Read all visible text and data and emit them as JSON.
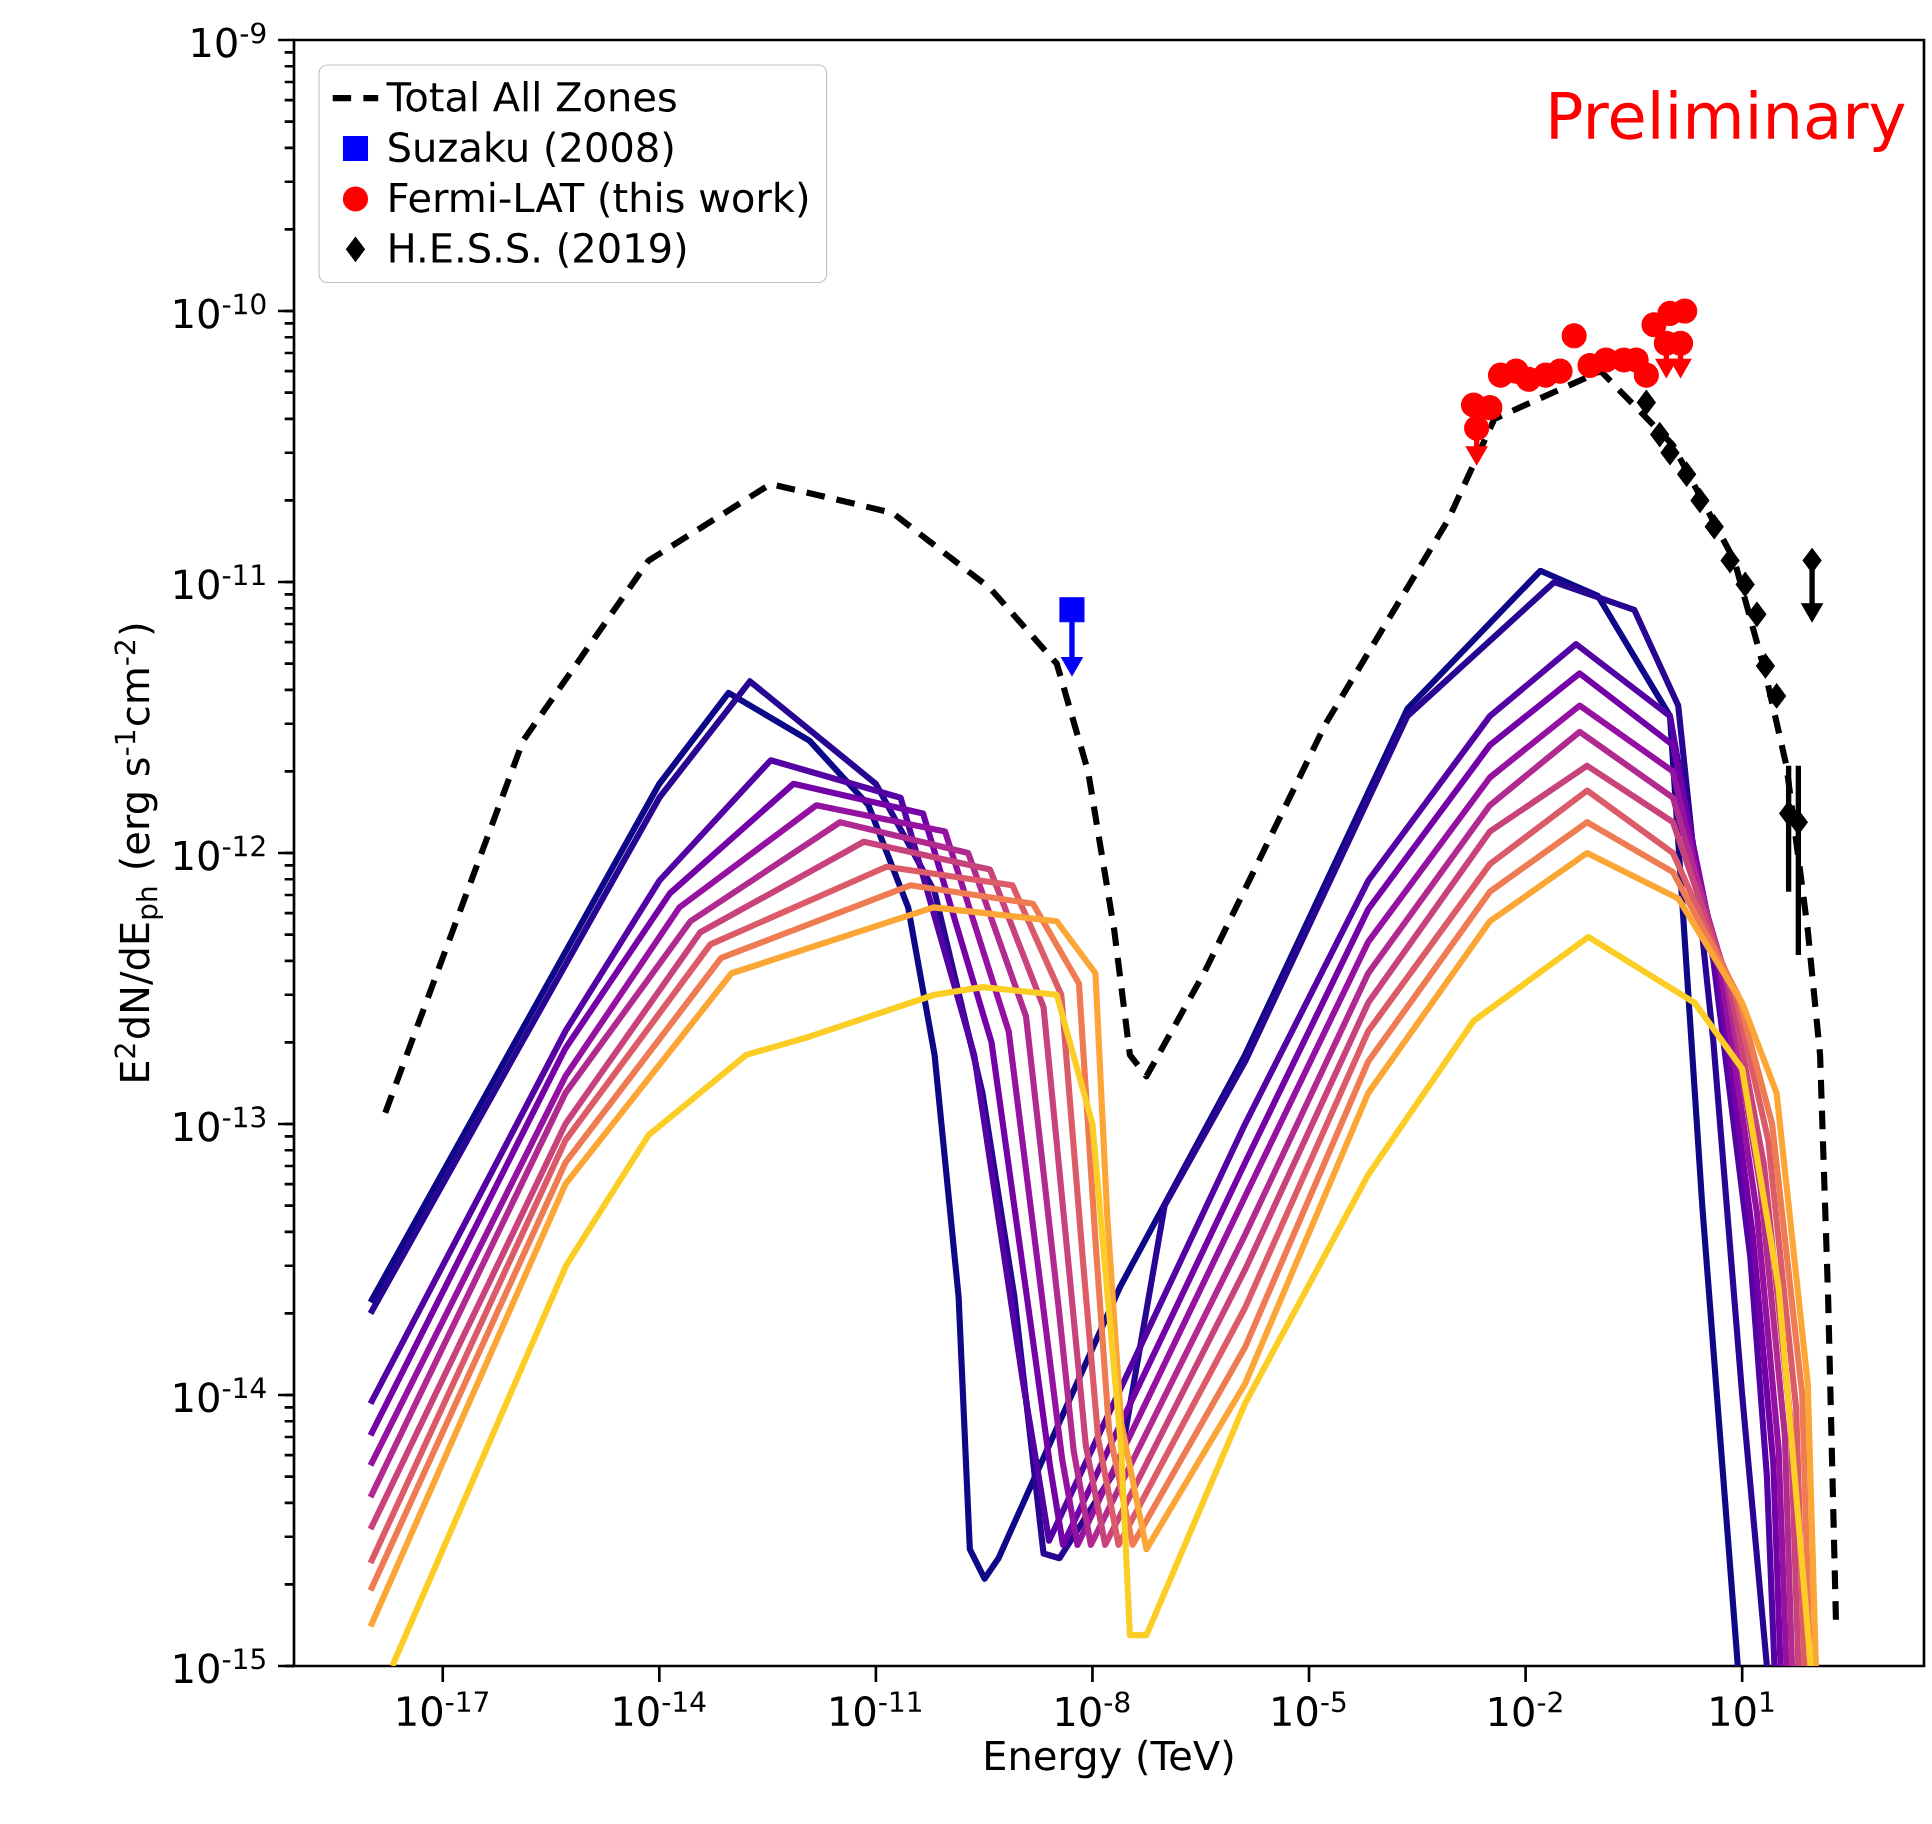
{
  "chart_data": {
    "type": "line",
    "log": "xy",
    "xlabel": "Energy (TeV)",
    "ylabel": "E$^{2}$dN/dE$_{ph}$ (erg s$^{-1}$cm$^{-2}$)",
    "xlim": [
      8.7e-20,
      3300.0
    ],
    "ylim": [
      1e-15,
      1e-09
    ],
    "xticks": [
      {
        "value": 1e-17,
        "label": "10$^{-17}$"
      },
      {
        "value": 1e-14,
        "label": "10$^{-14}$"
      },
      {
        "value": 1e-11,
        "label": "10$^{-11}$"
      },
      {
        "value": 1e-08,
        "label": "10$^{-8}$"
      },
      {
        "value": 1e-05,
        "label": "10$^{-5}$"
      },
      {
        "value": 0.01,
        "label": "10$^{-2}$"
      },
      {
        "value": 10,
        "label": "10$^{1}$"
      }
    ],
    "yticks": [
      {
        "value": 1e-15,
        "label": "10$^{-15}$"
      },
      {
        "value": 1e-14,
        "label": "10$^{-14}$"
      },
      {
        "value": 1e-13,
        "label": "10$^{-13}$"
      },
      {
        "value": 1e-12,
        "label": "10$^{-12}$"
      },
      {
        "value": 1e-11,
        "label": "10$^{-11}$"
      },
      {
        "value": 1e-10,
        "label": "10$^{-10}$"
      },
      {
        "value": 1e-09,
        "label": "10$^{-9}$"
      }
    ],
    "legend": "top left",
    "annotations": [
      "Preliminary"
    ],
    "series": [
      {
        "color": "#0d0887",
        "x": [
          1e-18,
          1e-16,
          1e-14,
          9.1e-14,
          1.2e-12,
          7.9e-12,
          2.8e-11,
          6.5e-11,
          1.4e-10,
          2e-10,
          3.2e-10,
          5e-10,
          2.4e-08,
          1.3e-06,
          0.00023,
          0.016,
          0.1,
          1,
          2.8,
          8.7
        ],
        "values": [
          2.2e-14,
          2e-13,
          1.8e-12,
          3.9e-12,
          2.6e-12,
          1.5e-12,
          6.3e-13,
          1.8e-13,
          2.3e-14,
          2.7e-15,
          2.1e-15,
          2.5e-15,
          2.5e-14,
          1.8e-13,
          3.4e-12,
          1.1e-11,
          8.9e-12,
          3.2e-12,
          5e-14,
          1e-15
        ]
      },
      {
        "color": "#280592",
        "x": [
          1e-18,
          1e-16,
          1e-14,
          1.8e-13,
          1e-11,
          6.5e-11,
          3e-10,
          8.3e-10,
          2.1e-09,
          3.5e-09,
          2.4e-08,
          1e-07,
          1.3e-06,
          0.00023,
          0.025,
          0.32,
          1.3,
          4.0,
          10,
          22
        ],
        "values": [
          2e-14,
          1.8e-13,
          1.6e-12,
          4.3e-12,
          1.8e-12,
          7.2e-13,
          1.3e-13,
          2.3e-14,
          2.6e-15,
          2.5e-15,
          5.6e-15,
          5e-14,
          1.7e-13,
          3.2e-12,
          1e-11,
          7.9e-12,
          3.5e-12,
          2e-13,
          1e-14,
          1e-15
        ]
      },
      {
        "color": "#5302a3",
        "x": [
          1e-18,
          5e-16,
          1e-14,
          3.5e-13,
          2.2e-11,
          2.3e-10,
          1.1e-09,
          1.8e-09,
          2.5e-09,
          1.3e-06,
          6.6e-05,
          0.0032,
          0.05,
          1,
          4.0,
          13,
          22,
          28
        ],
        "values": [
          9.3e-15,
          2.2e-13,
          7.9e-13,
          2.2e-12,
          1.6e-12,
          1.8e-13,
          1.1e-14,
          5e-15,
          2.9e-15,
          1e-13,
          7.9e-13,
          3.2e-12,
          5.9e-12,
          3.2e-12,
          4e-13,
          3.2e-14,
          5e-15,
          1e-15
        ]
      },
      {
        "color": "#7401a8",
        "x": [
          1e-18,
          5e-16,
          1.4e-14,
          7.2e-13,
          4.5e-11,
          4e-10,
          1.6e-09,
          2.6e-09,
          3.9e-09,
          1.3e-06,
          6.6e-05,
          0.0032,
          0.056,
          1.1,
          4.6,
          14,
          27,
          34
        ],
        "values": [
          7.1e-15,
          1.9e-13,
          7.1e-13,
          1.8e-12,
          1.4e-12,
          2e-13,
          1.4e-14,
          5.4e-15,
          2.8e-15,
          7.2e-14,
          6.2e-13,
          2.5e-12,
          4.6e-12,
          2.5e-12,
          3.8e-13,
          3.9e-14,
          5.6e-15,
          1e-15
        ]
      },
      {
        "color": "#9511a1",
        "x": [
          1e-18,
          5e-16,
          1.9e-14,
          1.5e-12,
          9.1e-11,
          6.9e-10,
          2.3e-09,
          3.8e-09,
          6.2e-09,
          1.3e-06,
          6.6e-05,
          0.0032,
          0.056,
          1.1,
          5.1,
          16,
          32,
          41
        ],
        "values": [
          5.5e-15,
          1.5e-13,
          6.3e-13,
          1.5e-12,
          1.2e-12,
          2.2e-13,
          1.7e-14,
          5.8e-15,
          2.8e-15,
          5.4e-14,
          4.7e-13,
          1.9e-12,
          3.5e-12,
          2e-12,
          3.6e-13,
          4.7e-14,
          6.3e-15,
          1e-15
        ]
      },
      {
        "color": "#b12a90",
        "x": [
          1e-18,
          5e-16,
          2.7e-14,
          3.2e-12,
          1.9e-10,
          1.2e-09,
          3.4e-09,
          5.5e-09,
          9.5e-09,
          1.3e-06,
          6.6e-05,
          0.0032,
          0.056,
          1.1,
          5.9,
          18,
          39,
          49
        ],
        "values": [
          4.2e-15,
          1.3e-13,
          5.6e-13,
          1.3e-12,
          1e-12,
          2.5e-13,
          2.1e-14,
          6.2e-15,
          2.8e-15,
          3.9e-14,
          3.6e-13,
          1.5e-12,
          2.8e-12,
          1.6e-12,
          3.5e-13,
          5.8e-14,
          7.1e-15,
          1e-15
        ]
      },
      {
        "color": "#c8437b",
        "x": [
          1e-18,
          5e-16,
          3.7e-14,
          6.8e-12,
          3.8e-10,
          2.1e-09,
          5e-09,
          8.1e-09,
          1.5e-08,
          1.3e-06,
          6.6e-05,
          0.0032,
          0.071,
          1.1,
          6.8,
          20,
          47,
          60
        ],
        "values": [
          3.2e-15,
          1e-13,
          5.1e-13,
          1.1e-12,
          8.7e-13,
          2.7e-13,
          2.5e-14,
          6.5e-15,
          2.8e-15,
          2.9e-14,
          2.8e-13,
          1.2e-12,
          2.1e-12,
          1.3e-12,
          3.2e-13,
          7.1e-14,
          7.9e-15,
          1e-15
        ]
      },
      {
        "color": "#dc5b68",
        "x": [
          1e-18,
          5e-16,
          5.1e-14,
          1.4e-11,
          7.8e-10,
          3.7e-09,
          7.4e-09,
          1.2e-08,
          2.3e-08,
          1.3e-06,
          6.6e-05,
          0.0032,
          0.071,
          1.1,
          7.8,
          23,
          56,
          72
        ],
        "values": [
          2.4e-15,
          8.7e-14,
          4.6e-13,
          8.9e-13,
          7.6e-13,
          3e-13,
          3.1e-14,
          6.9e-15,
          2.8e-15,
          2.1e-14,
          2.2e-13,
          9.1e-13,
          1.7e-12,
          1e-12,
          3.1e-13,
          8.7e-14,
          8.9e-15,
          1e-15
        ]
      },
      {
        "color": "#ee7b51",
        "x": [
          1e-18,
          5e-16,
          7.2e-14,
          3e-11,
          1.5e-09,
          6.5e-09,
          1.1e-08,
          1.7e-08,
          3.6e-08,
          1.3e-06,
          6.6e-05,
          0.0032,
          0.071,
          1.1,
          8.7,
          26,
          68,
          87
        ],
        "values": [
          1.9e-15,
          7.2e-14,
          4.1e-13,
          7.6e-13,
          6.5e-13,
          3.3e-13,
          3.7e-14,
          7.4e-15,
          2.8e-15,
          1.5e-14,
          1.7e-13,
          7.2e-13,
          1.3e-12,
          8.5e-13,
          3e-13,
          1e-13,
          1e-14,
          1e-15
        ]
      },
      {
        "color": "#fca636",
        "x": [
          1e-18,
          5e-16,
          1e-13,
          6.3e-11,
          3.2e-09,
          1.1e-08,
          1.6e-08,
          2.5e-08,
          5.6e-08,
          1.3e-06,
          6.6e-05,
          0.0032,
          0.071,
          1.3,
          10,
          30,
          81,
          105
        ],
        "values": [
          1.4e-15,
          6e-14,
          3.6e-13,
          6.3e-13,
          5.6e-13,
          3.6e-13,
          4.6e-14,
          7.9e-15,
          2.7e-15,
          1.1e-14,
          1.3e-13,
          5.6e-13,
          1e-12,
          6.8e-13,
          2.8e-13,
          1.3e-13,
          1.1e-14,
          1e-15
        ]
      },
      {
        "color": "#fcce25",
        "x": [
          2e-18,
          5.1e-16,
          7.1e-15,
          1.6e-13,
          1.2e-12,
          6.5e-11,
          3e-10,
          3.2e-09,
          1e-08,
          2.5e-08,
          3.3e-08,
          5.6e-08,
          1.3e-06,
          6.6e-05,
          0.0019,
          0.074,
          2.2,
          10,
          32,
          89
        ],
        "values": [
          1e-15,
          3e-14,
          9.1e-14,
          1.8e-13,
          2.1e-13,
          3e-13,
          3.2e-13,
          3e-13,
          1e-13,
          6.3e-15,
          1.3e-15,
          1.3e-15,
          9.3e-15,
          6.5e-14,
          2.4e-13,
          4.9e-13,
          2.8e-13,
          1.6e-13,
          2.5e-14,
          1e-15
        ]
      },
      {
        "name": "Total All Zones",
        "color": "#000000",
        "line_style": "dashed",
        "x": [
          1.6e-18,
          1.3e-16,
          7.1e-15,
          3.5e-13,
          1.7e-11,
          3.8e-10,
          3.2e-09,
          8.7e-09,
          2e-08,
          3.3e-08,
          5.6e-08,
          3.5e-07,
          1.7e-05,
          0.00085,
          0.0037,
          0.11,
          1.1,
          7.8,
          21,
          41,
          81,
          120,
          155,
          200
        ],
        "values": [
          1.1e-13,
          2.6e-12,
          1.2e-11,
          2.3e-11,
          1.8e-11,
          9.5e-12,
          5e-12,
          2e-12,
          5.2e-13,
          1.8e-13,
          1.5e-13,
          3.6e-13,
          3e-12,
          1.7e-11,
          4e-11,
          6e-11,
          3.2e-11,
          1.2e-11,
          4.6e-12,
          2.1e-12,
          5.2e-13,
          1.8e-13,
          2.3e-14,
          1.4e-15
        ]
      },
      {
        "type": "scatter",
        "marker": "triangle",
        "color": "#0000ff",
        "x": [
          5.2e-09
        ],
        "values": [
          5e-12
        ]
      },
      {
        "type": "scatter",
        "marker": "triangle",
        "color": "#ff0000",
        "x": [
          0.0021,
          0.89,
          1.4
        ],
        "values": [
          3e-11,
          6.3e-11,
          6.3e-11
        ]
      },
      {
        "type": "scatter",
        "marker": "triangle",
        "color": "#000000",
        "x": [
          93
        ],
        "values": [
          7.9e-12
        ]
      },
      {
        "name": "Suzaku (2008)",
        "type": "scatter",
        "marker": "square",
        "color": "#0000ff",
        "x": [
          5.2e-09
        ],
        "values": [
          7.9e-12
        ],
        "errors": [
          [
            5e-12,
            7.9e-12
          ]
        ]
      },
      {
        "name": "Fermi-LAT (this work)",
        "type": "scatter",
        "marker": "circle",
        "color": "#ff0000",
        "x": [
          0.0019,
          0.0032,
          0.0045,
          0.0074,
          0.011,
          0.019,
          0.03,
          0.047,
          0.078,
          0.13,
          0.23,
          0.34,
          0.47,
          0.6,
          1.0,
          1.6,
          0.0021,
          0.89,
          1.4
        ],
        "values": [
          4.5e-11,
          4.4e-11,
          5.8e-11,
          6e-11,
          5.6e-11,
          5.8e-11,
          6e-11,
          8.1e-11,
          6.3e-11,
          6.6e-11,
          6.6e-11,
          6.6e-11,
          5.8e-11,
          8.9e-11,
          9.8e-11,
          1e-10,
          3.7e-11,
          7.6e-11,
          7.6e-11
        ],
        "errors": [
          null,
          null,
          null,
          null,
          null,
          null,
          null,
          null,
          null,
          null,
          null,
          null,
          null,
          null,
          null,
          null,
          [
            3e-11,
            3.7e-11
          ],
          [
            6.3e-11,
            7.6e-11
          ],
          [
            6.3e-11,
            7.6e-11
          ]
        ]
      },
      {
        "name": "H.E.S.S. (2019)",
        "type": "scatter",
        "marker": "diamond",
        "color": "#000000",
        "x": [
          0.47,
          0.72,
          1.0,
          1.7,
          2.6,
          4.1,
          6.8,
          11,
          16,
          21,
          30,
          44,
          60,
          93
        ],
        "values": [
          4.6e-11,
          3.5e-11,
          3e-11,
          2.5e-11,
          2e-11,
          1.6e-11,
          1.2e-11,
          9.8e-12,
          7.6e-12,
          4.9e-12,
          3.8e-12,
          1.4e-12,
          1.3e-12,
          1.2e-11
        ],
        "errors": [
          null,
          null,
          null,
          null,
          null,
          null,
          null,
          null,
          null,
          null,
          null,
          [
            7.2e-13,
            2.1e-12
          ],
          [
            4.2e-13,
            2.1e-12
          ],
          [
            7.9e-12,
            1.2e-11
          ]
        ]
      }
    ]
  }
}
